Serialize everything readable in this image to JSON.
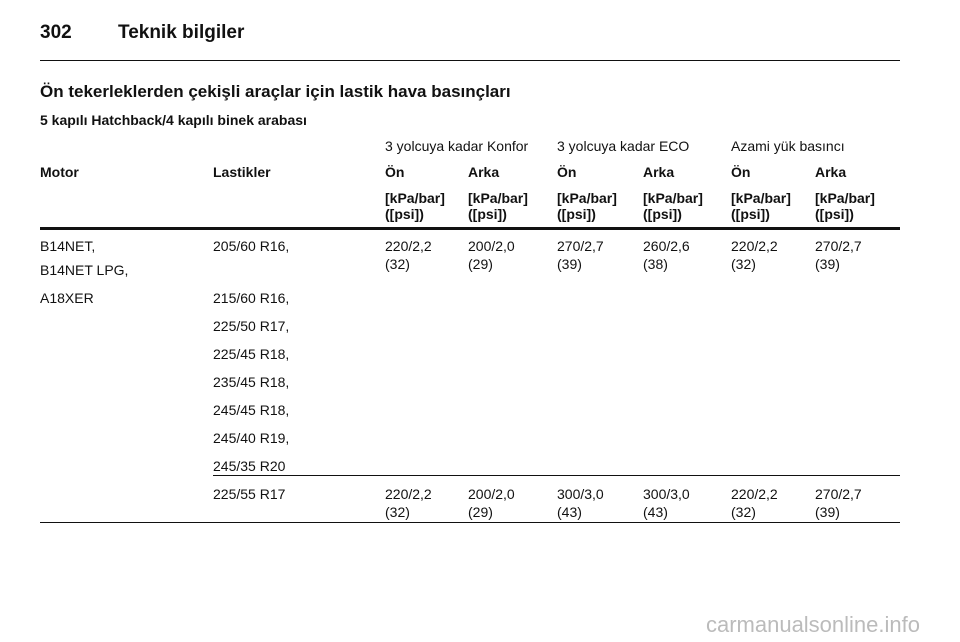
{
  "header": {
    "page_number": "302",
    "title": "Teknik bilgiler"
  },
  "section_title": "Ön tekerleklerden çekişli araçlar için lastik hava basınçları",
  "subtitle": "5 kapılı Hatchback/4 kapılı binek arabası",
  "table": {
    "group_headers": [
      "3 yolcuya kadar Konfor",
      "3 yolcuya kadar ECO",
      "Azami yük basıncı"
    ],
    "columns": [
      "Motor",
      "Lastikler",
      "Ön",
      "Arka",
      "Ön",
      "Arka",
      "Ön",
      "Arka"
    ],
    "units": [
      {
        "line1": "[kPa/bar]",
        "line2": "([psi])"
      },
      {
        "line1": "[kPa/bar]",
        "line2": "([psi])"
      },
      {
        "line1": "[kPa/bar]",
        "line2": "([psi])"
      },
      {
        "line1": "[kPa/bar]",
        "line2": "([psi])"
      },
      {
        "line1": "[kPa/bar]",
        "line2": "([psi])"
      },
      {
        "line1": "[kPa/bar]",
        "line2": "([psi])"
      }
    ],
    "rows": [
      {
        "motors": [
          "B14NET,",
          "B14NET LPG,",
          "A18XER"
        ],
        "tires": [
          "205/60 R16,",
          "215/60 R16,",
          "225/50 R17,",
          "225/45 R18,",
          "235/45 R18,",
          "245/45 R18,",
          "245/40 R19,",
          "245/35 R20"
        ],
        "values": [
          {
            "pressure": "220/2,2",
            "psi": "(32)"
          },
          {
            "pressure": "200/2,0",
            "psi": "(29)"
          },
          {
            "pressure": "270/2,7",
            "psi": "(39)"
          },
          {
            "pressure": "260/2,6",
            "psi": "(38)"
          },
          {
            "pressure": "220/2,2",
            "psi": "(32)"
          },
          {
            "pressure": "270/2,7",
            "psi": "(39)"
          }
        ]
      },
      {
        "motors": [],
        "tires": [
          "225/55 R17"
        ],
        "values": [
          {
            "pressure": "220/2,2",
            "psi": "(32)"
          },
          {
            "pressure": "200/2,0",
            "psi": "(29)"
          },
          {
            "pressure": "300/3,0",
            "psi": "(43)"
          },
          {
            "pressure": "300/3,0",
            "psi": "(43)"
          },
          {
            "pressure": "220/2,2",
            "psi": "(32)"
          },
          {
            "pressure": "270/2,7",
            "psi": "(39)"
          }
        ]
      }
    ]
  },
  "watermark": "carmanualsonline.info"
}
